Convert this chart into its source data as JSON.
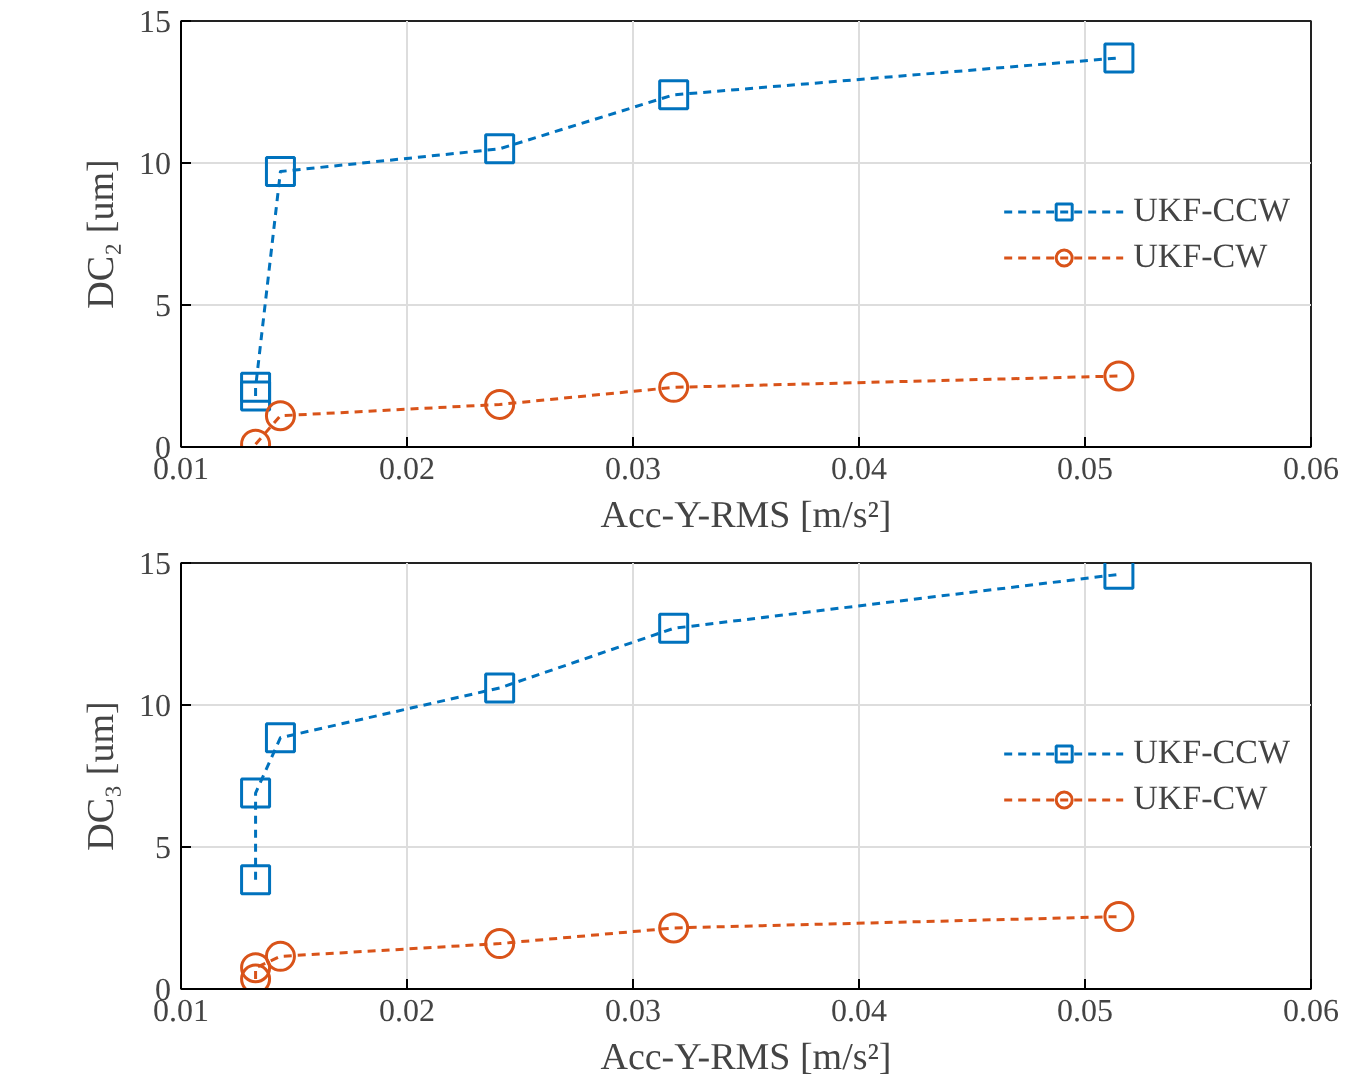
{
  "chart_data": [
    {
      "type": "line",
      "xlabel": "Acc-Y-RMS [m/s²]",
      "ylabel": "DC₂ [um]",
      "xlim": [
        0.01,
        0.06
      ],
      "xticks": [
        0.01,
        0.02,
        0.03,
        0.04,
        0.05,
        0.06
      ],
      "ylim": [
        0,
        15
      ],
      "yticks": [
        0,
        5,
        10,
        15
      ],
      "grid": true,
      "legend": "right",
      "line_style": "dashed",
      "series": [
        {
          "name": "UKF-CCW",
          "color": "#0072bd",
          "marker": "square",
          "x": [
            0.0133,
            0.0133,
            0.0144,
            0.0241,
            0.0318,
            0.0515
          ],
          "values": [
            1.8,
            2.1,
            9.7,
            10.5,
            12.4,
            13.7
          ]
        },
        {
          "name": "UKF-CW",
          "color": "#d95319",
          "marker": "circle",
          "x": [
            0.0133,
            0.0144,
            0.0241,
            0.0318,
            0.0515
          ],
          "values": [
            0.1,
            1.1,
            1.5,
            2.1,
            2.5
          ]
        }
      ]
    },
    {
      "type": "line",
      "xlabel": "Acc-Y-RMS [m/s²]",
      "ylabel": "DC₃ [um]",
      "xlim": [
        0.01,
        0.06
      ],
      "xticks": [
        0.01,
        0.02,
        0.03,
        0.04,
        0.05,
        0.06
      ],
      "ylim": [
        0,
        15
      ],
      "yticks": [
        0,
        5,
        10,
        15
      ],
      "grid": true,
      "legend": "right",
      "line_style": "dashed",
      "series": [
        {
          "name": "UKF-CCW",
          "color": "#0072bd",
          "marker": "square",
          "x": [
            0.0133,
            0.0133,
            0.0144,
            0.0241,
            0.0318,
            0.0515
          ],
          "values": [
            3.85,
            6.9,
            8.85,
            10.6,
            12.7,
            14.6
          ]
        },
        {
          "name": "UKF-CW",
          "color": "#d95319",
          "marker": "circle",
          "x": [
            0.0133,
            0.0133,
            0.0144,
            0.0241,
            0.0318,
            0.0515
          ],
          "values": [
            0.35,
            0.75,
            1.15,
            1.6,
            2.15,
            2.55
          ]
        }
      ]
    }
  ]
}
